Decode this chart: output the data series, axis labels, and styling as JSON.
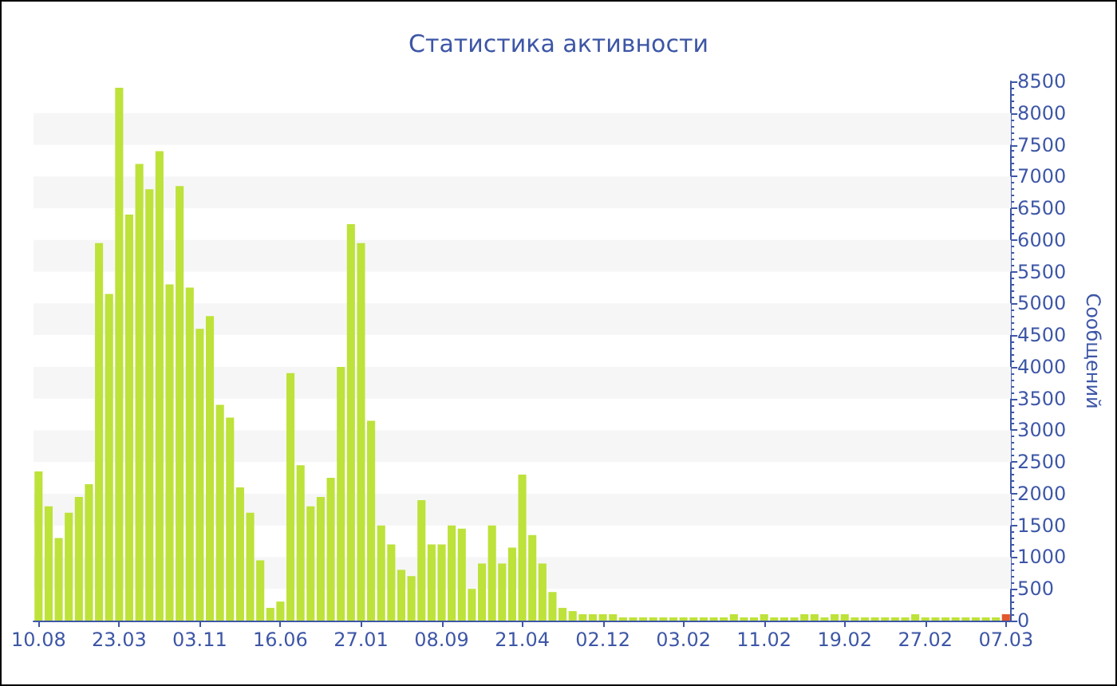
{
  "chart_data": {
    "type": "bar",
    "title": "Статистика активности",
    "ylabel": "Сообщений",
    "categories": [
      "10.08",
      null,
      null,
      null,
      null,
      null,
      null,
      null,
      "23.03",
      null,
      null,
      null,
      null,
      null,
      null,
      null,
      "03.11",
      null,
      null,
      null,
      null,
      null,
      null,
      null,
      "16.06",
      null,
      null,
      null,
      null,
      null,
      null,
      null,
      "27.01",
      null,
      null,
      null,
      null,
      null,
      null,
      null,
      "08.09",
      null,
      null,
      null,
      null,
      null,
      null,
      null,
      "21.04",
      null,
      null,
      null,
      null,
      null,
      null,
      null,
      "02.12",
      null,
      null,
      null,
      null,
      null,
      null,
      null,
      "03.02",
      null,
      null,
      null,
      null,
      null,
      null,
      null,
      "11.02",
      null,
      null,
      null,
      null,
      null,
      null,
      null,
      "19.02",
      null,
      null,
      null,
      null,
      null,
      null,
      null,
      "27.02",
      null,
      null,
      null,
      null,
      null,
      null,
      null,
      "07.03"
    ],
    "values": [
      2350,
      1800,
      1300,
      1700,
      1950,
      2150,
      5950,
      5150,
      8400,
      6400,
      7200,
      6800,
      7400,
      5300,
      6850,
      5250,
      4600,
      4800,
      3400,
      3200,
      2100,
      1700,
      950,
      200,
      300,
      3900,
      2450,
      1800,
      1950,
      2250,
      4000,
      6250,
      5950,
      3150,
      1500,
      1200,
      800,
      700,
      1900,
      1200,
      1200,
      1500,
      1450,
      500,
      900,
      1500,
      900,
      1150,
      2300,
      1350,
      900,
      450,
      200,
      150,
      100,
      100,
      100,
      100,
      50,
      50,
      50,
      50,
      50,
      50,
      50,
      50,
      50,
      50,
      50,
      100,
      50,
      50,
      100,
      50,
      50,
      50,
      100,
      100,
      50,
      100,
      100,
      50,
      50,
      50,
      50,
      50,
      50,
      100,
      50,
      50,
      50,
      50,
      50,
      50,
      50,
      50,
      100
    ],
    "colors": [
      "#bde23a",
      "#bde23a",
      "#bde23a",
      "#bde23a",
      "#bde23a",
      "#bde23a",
      "#bde23a",
      "#bde23a",
      "#bde23a",
      "#bde23a",
      "#bde23a",
      "#bde23a",
      "#bde23a",
      "#bde23a",
      "#bde23a",
      "#bde23a",
      "#bde23a",
      "#bde23a",
      "#bde23a",
      "#bde23a",
      "#bde23a",
      "#bde23a",
      "#bde23a",
      "#bde23a",
      "#bde23a",
      "#bde23a",
      "#bde23a",
      "#bde23a",
      "#bde23a",
      "#bde23a",
      "#bde23a",
      "#bde23a",
      "#bde23a",
      "#bde23a",
      "#bde23a",
      "#bde23a",
      "#bde23a",
      "#bde23a",
      "#bde23a",
      "#bde23a",
      "#bde23a",
      "#bde23a",
      "#bde23a",
      "#bde23a",
      "#bde23a",
      "#bde23a",
      "#bde23a",
      "#bde23a",
      "#bde23a",
      "#bde23a",
      "#bde23a",
      "#bde23a",
      "#bde23a",
      "#bde23a",
      "#bde23a",
      "#bde23a",
      "#bde23a",
      "#bde23a",
      "#bde23a",
      "#bde23a",
      "#bde23a",
      "#bde23a",
      "#bde23a",
      "#bde23a",
      "#bde23a",
      "#bde23a",
      "#bde23a",
      "#bde23a",
      "#bde23a",
      "#bde23a",
      "#bde23a",
      "#bde23a",
      "#bde23a",
      "#bde23a",
      "#bde23a",
      "#bde23a",
      "#bde23a",
      "#bde23a",
      "#bde23a",
      "#bde23a",
      "#bde23a",
      "#bde23a",
      "#bde23a",
      "#bde23a",
      "#bde23a",
      "#bde23a",
      "#bde23a",
      "#bde23a",
      "#bde23a",
      "#bde23a",
      "#bde23a",
      "#bde23a",
      "#bde23a",
      "#bde23a",
      "#bde23a",
      "#bde23a",
      "#e2572b"
    ],
    "ylim": [
      0,
      8500
    ],
    "yticks": [
      0,
      500,
      1000,
      1500,
      2000,
      2500,
      3000,
      3500,
      4000,
      4500,
      5000,
      5500,
      6000,
      6500,
      7000,
      7500,
      8000,
      8500
    ],
    "bands": [
      {
        "axis": "y",
        "from": 500,
        "to": 1000,
        "color": "#f6f6f6"
      },
      {
        "axis": "y",
        "from": 1500,
        "to": 2000,
        "color": "#f6f6f6"
      },
      {
        "axis": "y",
        "from": 2500,
        "to": 3000,
        "color": "#f6f6f6"
      },
      {
        "axis": "y",
        "from": 3500,
        "to": 4000,
        "color": "#f6f6f6"
      },
      {
        "axis": "y",
        "from": 4500,
        "to": 5000,
        "color": "#f6f6f6"
      },
      {
        "axis": "y",
        "from": 5500,
        "to": 6000,
        "color": "#f6f6f6"
      },
      {
        "axis": "y",
        "from": 6500,
        "to": 7000,
        "color": "#f6f6f6"
      },
      {
        "axis": "y",
        "from": 7500,
        "to": 8000,
        "color": "#f6f6f6"
      }
    ]
  }
}
